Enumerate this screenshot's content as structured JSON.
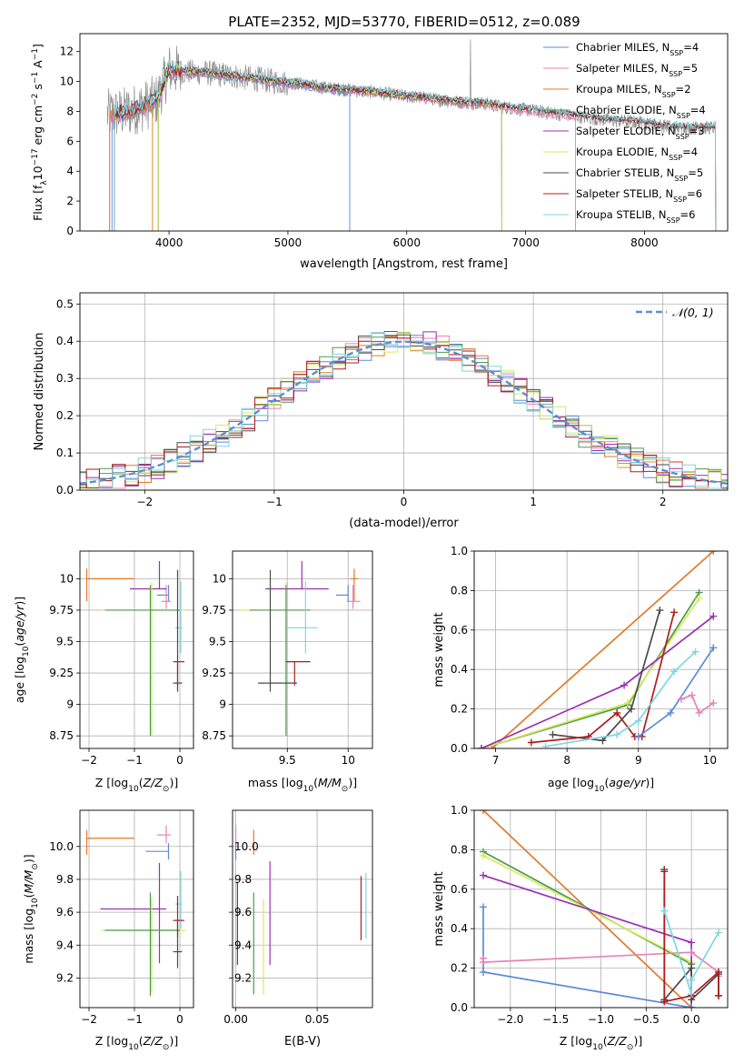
{
  "title": "PLATE=2352, MJD=53770, FIBERID=0512, z=0.089",
  "colors": {
    "chabrier_miles": "#5b8bd9",
    "salpeter_miles": "#e882b4",
    "kroupa_miles": "#e07a2a",
    "chabrier_elodie": "#4c9a50",
    "salpeter_elodie": "#9a2fb0",
    "kroupa_elodie": "#d7ea5a",
    "chabrier_stelib": "#4a4a4a",
    "salpeter_stelib": "#b01c1c",
    "kroupa_stelib": "#7ed6e0",
    "observed": "#8c8c8c",
    "normal": "#5b8fd0",
    "grid": "#b0b0b0"
  },
  "chart_data": [
    {
      "id": "spectrum",
      "type": "line",
      "xlabel": "wavelength [Angstrom, rest frame]",
      "ylabel": "Flux [f",
      "ylabel_parts": [
        "Flux [f",
        "λ",
        "10",
        "−17",
        " erg cm",
        "−2",
        " s",
        "−1",
        " A",
        "−1",
        "]"
      ],
      "xlim": [
        3250,
        8700
      ],
      "ylim": [
        0,
        13.2
      ],
      "xticks": [
        4000,
        5000,
        6000,
        7000,
        8000
      ],
      "yticks": [
        0,
        2,
        4,
        6,
        8,
        10,
        12
      ],
      "grid": false,
      "legend_position": "top-right",
      "continuum": {
        "x": [
          3480,
          3600,
          3700,
          3800,
          3900,
          4000,
          4100,
          4200,
          4300,
          4400,
          4500,
          4600,
          4700,
          4800,
          4900,
          5000,
          5100,
          5200,
          5300,
          5400,
          5500,
          5600,
          5700,
          5800,
          5900,
          6000,
          6100,
          6200,
          6300,
          6400,
          6500,
          6600,
          6700,
          6800,
          6900,
          7000,
          7100,
          7200,
          7300,
          7400,
          7500,
          7600,
          7700,
          7800,
          7900,
          8000,
          8100,
          8200,
          8300
        ],
        "y": [
          7.8,
          7.9,
          8.1,
          8.4,
          8.8,
          10.8,
          10.7,
          10.6,
          10.6,
          10.5,
          10.4,
          10.3,
          10.2,
          10.1,
          10.0,
          9.9,
          9.85,
          9.7,
          9.6,
          9.5,
          9.45,
          9.35,
          9.3,
          9.2,
          9.1,
          9.0,
          8.95,
          8.85,
          8.75,
          8.65,
          8.6,
          8.55,
          8.45,
          8.3,
          8.2,
          8.1,
          8.0,
          7.9,
          7.8,
          7.7,
          7.6,
          7.5,
          7.4,
          7.35,
          7.3,
          7.2,
          7.1,
          7.0,
          6.9
        ]
      },
      "series": [
        {
          "name": "Chabrier MILES",
          "n_ssp": "4",
          "color_key": "chabrier_miles",
          "x_start": 3520,
          "x_end": 5520
        },
        {
          "name": "Salpeter MILES",
          "n_ssp": "5",
          "color_key": "salpeter_miles",
          "x_start": 3500,
          "x_end": 7420
        },
        {
          "name": "Kroupa MILES",
          "n_ssp": "2",
          "color_key": "kroupa_miles",
          "x_start": 3500,
          "x_end": 3860
        },
        {
          "name": "Chabrier ELODIE",
          "n_ssp": "4",
          "color_key": "chabrier_elodie",
          "x_start": 3910,
          "x_end": 6800
        },
        {
          "name": "Salpeter ELODIE",
          "n_ssp": "3",
          "color_key": "salpeter_elodie",
          "x_start": 3910,
          "x_end": 6800
        },
        {
          "name": "Kroupa ELODIE",
          "n_ssp": "4",
          "color_key": "kroupa_elodie",
          "x_start": 3910,
          "x_end": 6800
        },
        {
          "name": "Chabrier STELIB",
          "n_ssp": "5",
          "color_key": "chabrier_stelib",
          "x_start": 3540,
          "x_end": 8600
        },
        {
          "name": "Salpeter STELIB",
          "n_ssp": "6",
          "color_key": "salpeter_stelib",
          "x_start": 3540,
          "x_end": 8600
        },
        {
          "name": "Kroupa STELIB",
          "n_ssp": "6",
          "color_key": "kroupa_stelib",
          "x_start": 3540,
          "x_end": 8600
        }
      ]
    },
    {
      "id": "residuals",
      "type": "line",
      "xlabel": "(data-model)/error",
      "ylabel": "Normed distribution",
      "xlim": [
        -2.5,
        2.5
      ],
      "ylim": [
        0,
        0.53
      ],
      "xticks": [
        -2,
        -1,
        0,
        1,
        2
      ],
      "yticks": [
        0.0,
        0.1,
        0.2,
        0.3,
        0.4,
        0.5
      ],
      "grid": true,
      "legend_position": "top-right",
      "normal_label": "𝒩(0, 1)",
      "bin_width": 0.1
    },
    {
      "id": "age_vs_z",
      "type": "scatter",
      "xlabel": "Z [log₁₀(Z/Z⊙)]",
      "ylabel": "age  [log₁₀(age/yr)]",
      "xlim": [
        -2.2,
        0.3
      ],
      "ylim": [
        8.65,
        10.22
      ],
      "xticks": [
        -2,
        -1,
        0
      ],
      "yticks": [
        8.75,
        9.0,
        9.25,
        9.5,
        9.75,
        10.0
      ],
      "grid": true,
      "points": [
        {
          "color_key": "kroupa_miles",
          "x": -2.05,
          "y": 10.0,
          "xlo": 0,
          "xhi": 1.05,
          "ylo": 0.18,
          "yhi": 0.08
        },
        {
          "color_key": "chabrier_miles",
          "x": -0.25,
          "y": 9.87,
          "xlo": 0.25,
          "xhi": 0.0,
          "ylo": 0.05,
          "yhi": 0.08
        },
        {
          "color_key": "salpeter_miles",
          "x": -0.3,
          "y": 9.82,
          "xlo": 0.1,
          "xhi": 0.1,
          "ylo": 0.06,
          "yhi": 0.13
        },
        {
          "color_key": "salpeter_elodie",
          "x": -0.45,
          "y": 9.92,
          "xlo": 0.65,
          "xhi": 0.15,
          "ylo": 0.0,
          "yhi": 0.22
        },
        {
          "color_key": "kroupa_elodie",
          "x": -0.62,
          "y": 9.75,
          "xlo": 1.1,
          "xhi": 0.75,
          "ylo": 1.0,
          "yhi": 0.22
        },
        {
          "color_key": "chabrier_elodie",
          "x": -0.65,
          "y": 9.75,
          "xlo": 1.0,
          "xhi": 0.65,
          "ylo": 1.0,
          "yhi": 0.2
        },
        {
          "color_key": "kroupa_stelib",
          "x": 0.02,
          "y": 9.61,
          "xlo": 0.12,
          "xhi": 0.04,
          "ylo": 0.2,
          "yhi": 0.37
        },
        {
          "color_key": "salpeter_stelib",
          "x": -0.05,
          "y": 9.34,
          "xlo": 0.1,
          "xhi": 0.15,
          "ylo": 0.19,
          "yhi": 0.0
        },
        {
          "color_key": "chabrier_stelib",
          "x": -0.05,
          "y": 9.17,
          "xlo": 0.1,
          "xhi": 0.1,
          "ylo": 0.07,
          "yhi": 0.9
        }
      ]
    },
    {
      "id": "age_vs_mass",
      "type": "scatter",
      "xlabel": "mass [log₁₀(M/M⊙)]",
      "ylabel": "",
      "xlim": [
        9.05,
        10.2
      ],
      "ylim": [
        8.65,
        10.22
      ],
      "xticks": [
        9.5,
        10.0
      ],
      "yticks": [
        8.75,
        9.0,
        9.25,
        9.5,
        9.75,
        10.0
      ],
      "grid": true,
      "points": [
        {
          "color_key": "kroupa_miles",
          "x": 10.05,
          "y": 10.0,
          "xlo": 0.03,
          "xhi": 0.03,
          "ylo": 0.18,
          "yhi": 0.08
        },
        {
          "color_key": "chabrier_miles",
          "x": 10.0,
          "y": 9.87,
          "xlo": 0.1,
          "xhi": 0.0,
          "ylo": 0.05,
          "yhi": 0.08
        },
        {
          "color_key": "salpeter_miles",
          "x": 10.04,
          "y": 9.82,
          "xlo": 0.05,
          "xhi": 0.06,
          "ylo": 0.06,
          "yhi": 0.13
        },
        {
          "color_key": "salpeter_elodie",
          "x": 9.62,
          "y": 9.92,
          "xlo": 0.3,
          "xhi": 0.22,
          "ylo": 0.0,
          "yhi": 0.22
        },
        {
          "color_key": "kroupa_elodie",
          "x": 9.49,
          "y": 9.75,
          "xlo": 0.38,
          "xhi": 0.2,
          "ylo": 1.0,
          "yhi": 0.22
        },
        {
          "color_key": "chabrier_elodie",
          "x": 9.49,
          "y": 9.75,
          "xlo": 0.3,
          "xhi": 0.2,
          "ylo": 1.0,
          "yhi": 0.2
        },
        {
          "color_key": "kroupa_stelib",
          "x": 9.65,
          "y": 9.61,
          "xlo": 0.15,
          "xhi": 0.1,
          "ylo": 0.2,
          "yhi": 0.37
        },
        {
          "color_key": "salpeter_stelib",
          "x": 9.56,
          "y": 9.34,
          "xlo": 0.07,
          "xhi": 0.13,
          "ylo": 0.19,
          "yhi": 0.0
        },
        {
          "color_key": "chabrier_stelib",
          "x": 9.36,
          "y": 9.17,
          "xlo": 0.1,
          "xhi": 0.22,
          "ylo": 0.07,
          "yhi": 0.9
        }
      ]
    },
    {
      "id": "mass_weight_vs_age",
      "type": "line",
      "xlabel": "age  [log₁₀(age/yr)]",
      "ylabel": "mass weight",
      "xlim": [
        6.7,
        10.25
      ],
      "ylim": [
        0,
        1.0
      ],
      "xticks": [
        7,
        8,
        9,
        10
      ],
      "yticks": [
        0.0,
        0.2,
        0.4,
        0.6,
        0.8,
        1.0
      ],
      "grid": true,
      "series": [
        {
          "color_key": "kroupa_miles",
          "x": [
            6.95,
            10.05
          ],
          "y": [
            0.0,
            1.0
          ]
        },
        {
          "color_key": "chabrier_elodie",
          "x": [
            6.8,
            8.85,
            9.85
          ],
          "y": [
            0.0,
            0.22,
            0.79
          ]
        },
        {
          "color_key": "kroupa_elodie",
          "x": [
            6.8,
            8.85,
            9.85
          ],
          "y": [
            0.0,
            0.23,
            0.76
          ]
        },
        {
          "color_key": "salpeter_elodie",
          "x": [
            6.8,
            8.8,
            10.05
          ],
          "y": [
            0.0,
            0.32,
            0.67
          ]
        },
        {
          "color_key": "chabrier_stelib",
          "x": [
            7.8,
            8.5,
            8.9,
            9.3
          ],
          "y": [
            0.07,
            0.04,
            0.2,
            0.7
          ]
        },
        {
          "color_key": "salpeter_stelib",
          "x": [
            7.5,
            8.3,
            8.7,
            8.95,
            9.05,
            9.5
          ],
          "y": [
            0.03,
            0.06,
            0.18,
            0.06,
            0.06,
            0.69
          ]
        },
        {
          "color_key": "kroupa_stelib",
          "x": [
            7.7,
            8.7,
            9.0,
            9.5,
            9.8
          ],
          "y": [
            0.01,
            0.07,
            0.14,
            0.39,
            0.49
          ]
        },
        {
          "color_key": "chabrier_miles",
          "x": [
            9.0,
            9.45,
            10.05
          ],
          "y": [
            0.06,
            0.18,
            0.51
          ]
        },
        {
          "color_key": "salpeter_miles",
          "x": [
            9.6,
            9.75,
            9.85,
            10.05
          ],
          "y": [
            0.25,
            0.27,
            0.18,
            0.23
          ]
        }
      ]
    },
    {
      "id": "mass_vs_z",
      "type": "scatter",
      "xlabel": "Z [log₁₀(Z/Z⊙)]",
      "ylabel": "mass [log₁₀(M/M⊙)]",
      "xlim": [
        -2.2,
        0.3
      ],
      "ylim": [
        9.02,
        10.22
      ],
      "xticks": [
        -2,
        -1,
        0
      ],
      "yticks": [
        9.2,
        9.4,
        9.6,
        9.8,
        10.0
      ],
      "grid": true,
      "points": [
        {
          "color_key": "kroupa_miles",
          "x": -2.05,
          "y": 10.05,
          "xlo": 0,
          "xhi": 1.05,
          "ylo": 0.1,
          "yhi": 0.05
        },
        {
          "color_key": "chabrier_miles",
          "x": -0.25,
          "y": 9.97,
          "xlo": 0.5,
          "xhi": 0.0,
          "ylo": 0.05,
          "yhi": 0.05
        },
        {
          "color_key": "salpeter_miles",
          "x": -0.3,
          "y": 10.07,
          "xlo": 0.2,
          "xhi": 0.1,
          "ylo": 0.05,
          "yhi": 0.06
        },
        {
          "color_key": "salpeter_elodie",
          "x": -0.45,
          "y": 9.62,
          "xlo": 1.3,
          "xhi": 0.15,
          "ylo": 0.33,
          "yhi": 0.28
        },
        {
          "color_key": "kroupa_elodie",
          "x": -0.62,
          "y": 9.49,
          "xlo": 1.1,
          "xhi": 0.75,
          "ylo": 0.38,
          "yhi": 0.2
        },
        {
          "color_key": "chabrier_elodie",
          "x": -0.65,
          "y": 9.49,
          "xlo": 1.0,
          "xhi": 0.65,
          "ylo": 0.4,
          "yhi": 0.23
        },
        {
          "color_key": "kroupa_stelib",
          "x": 0.02,
          "y": 9.65,
          "xlo": 0.12,
          "xhi": 0.04,
          "ylo": 0.15,
          "yhi": 0.2
        },
        {
          "color_key": "salpeter_stelib",
          "x": -0.05,
          "y": 9.55,
          "xlo": 0.1,
          "xhi": 0.15,
          "ylo": 0.1,
          "yhi": 0.15
        },
        {
          "color_key": "chabrier_stelib",
          "x": -0.05,
          "y": 9.36,
          "xlo": 0.1,
          "xhi": 0.1,
          "ylo": 0.1,
          "yhi": 0.2
        }
      ]
    },
    {
      "id": "mass_vs_ebv",
      "type": "scatter",
      "xlabel": "E(B-V)",
      "ylabel": "",
      "xlim": [
        -0.002,
        0.084
      ],
      "ylim": [
        9.02,
        10.22
      ],
      "xticks": [
        0.0,
        0.05
      ],
      "ytick_values": [
        9.2,
        9.4,
        9.6,
        9.8,
        10.0
      ],
      "grid": true,
      "points": [
        {
          "color_key": "salpeter_miles",
          "x": 0.0,
          "y": 10.07,
          "ylo": 0.06,
          "yhi": 0.06
        },
        {
          "color_key": "chabrier_miles",
          "x": 0.0,
          "y": 9.97,
          "ylo": 0.05,
          "yhi": 0.05
        },
        {
          "color_key": "kroupa_miles",
          "x": 0.011,
          "y": 10.05,
          "ylo": 0.1,
          "yhi": 0.05
        },
        {
          "color_key": "chabrier_stelib",
          "x": 0.001,
          "y": 9.53,
          "ylo": 0.25,
          "yhi": 0.25
        },
        {
          "color_key": "chabrier_elodie",
          "x": 0.011,
          "y": 9.4,
          "ylo": 0.3,
          "yhi": 0.32
        },
        {
          "color_key": "kroupa_elodie",
          "x": 0.017,
          "y": 9.34,
          "ylo": 0.24,
          "yhi": 0.34
        },
        {
          "color_key": "salpeter_elodie",
          "x": 0.021,
          "y": 9.6,
          "ylo": 0.32,
          "yhi": 0.31
        },
        {
          "color_key": "salpeter_stelib",
          "x": 0.077,
          "y": 9.63,
          "ylo": 0.2,
          "yhi": 0.19
        },
        {
          "color_key": "kroupa_stelib",
          "x": 0.08,
          "y": 9.64,
          "ylo": 0.2,
          "yhi": 0.2
        }
      ]
    },
    {
      "id": "mass_weight_vs_z",
      "type": "line",
      "xlabel": "Z [log₁₀(Z/Z⊙)]",
      "ylabel": "mass weight",
      "xlim": [
        -2.4,
        0.4
      ],
      "ylim": [
        0,
        1.0
      ],
      "xticks": [
        -2.0,
        -1.5,
        -1.0,
        -0.5,
        0.0
      ],
      "yticks": [
        0.0,
        0.2,
        0.4,
        0.6,
        0.8,
        1.0
      ],
      "grid": true,
      "series": [
        {
          "color_key": "kroupa_miles",
          "x": [
            -2.3,
            0.0
          ],
          "y": [
            1.0,
            0.0
          ]
        },
        {
          "color_key": "chabrier_elodie",
          "x": [
            -2.3,
            0.0,
            0.0
          ],
          "y": [
            0.79,
            0.22,
            0.0
          ]
        },
        {
          "color_key": "kroupa_elodie",
          "x": [
            -2.3,
            0.0,
            0.0
          ],
          "y": [
            0.77,
            0.23,
            0.0
          ]
        },
        {
          "color_key": "salpeter_elodie",
          "x": [
            -2.3,
            0.0,
            0.0
          ],
          "y": [
            0.67,
            0.33,
            0.0
          ]
        },
        {
          "color_key": "chabrier_miles",
          "x": [
            -2.3,
            -2.3,
            0.0,
            0.0
          ],
          "y": [
            0.51,
            0.18,
            0.0,
            0.06
          ]
        },
        {
          "color_key": "salpeter_miles",
          "x": [
            -2.3,
            -2.3,
            0.0,
            0.3,
            0.3
          ],
          "y": [
            0.25,
            0.23,
            0.28,
            0.18,
            0.16
          ]
        },
        {
          "color_key": "chabrier_stelib",
          "x": [
            -0.3,
            -0.3,
            0.0,
            0.0,
            0.3,
            0.3
          ],
          "y": [
            0.7,
            0.04,
            0.2,
            0.04,
            0.17,
            0.06
          ]
        },
        {
          "color_key": "salpeter_stelib",
          "x": [
            -0.3,
            -0.3,
            0.0,
            0.0,
            0.3,
            0.3
          ],
          "y": [
            0.69,
            0.03,
            0.06,
            0.06,
            0.18,
            0.06
          ]
        },
        {
          "color_key": "kroupa_stelib",
          "x": [
            -0.3,
            0.0,
            0.0,
            0.3
          ],
          "y": [
            0.49,
            0.07,
            0.14,
            0.38
          ]
        }
      ]
    }
  ]
}
